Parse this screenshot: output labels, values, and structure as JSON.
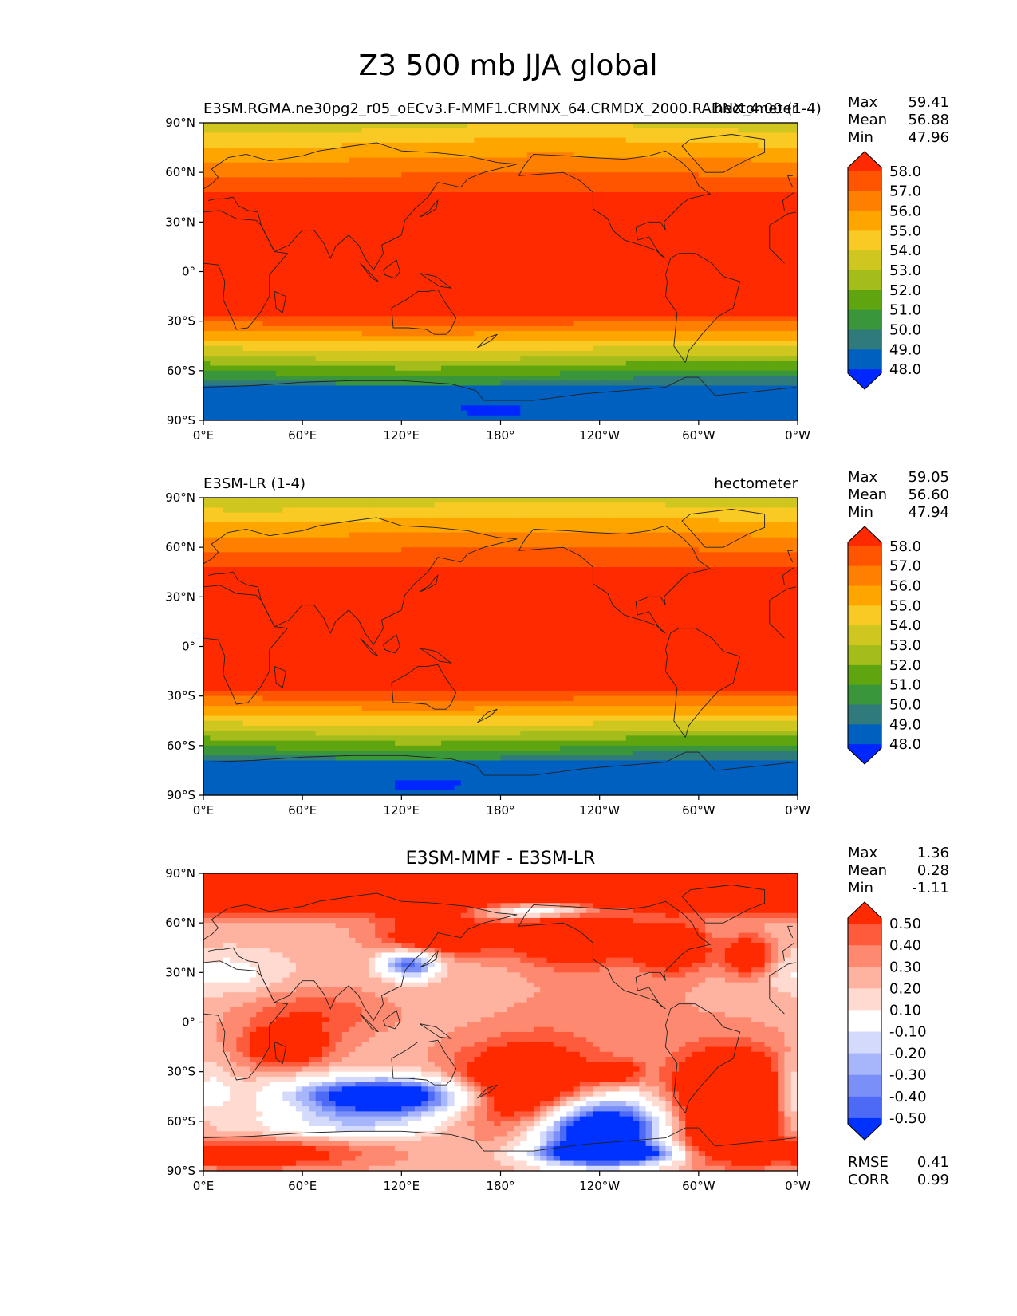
{
  "figure_title": "Z3 500 mb JJA global",
  "x_ticks": [
    "0°E",
    "60°E",
    "120°E",
    "180°",
    "120°W",
    "60°W",
    "0°W"
  ],
  "y_ticks": [
    "90°N",
    "60°N",
    "30°N",
    "0°",
    "30°S",
    "60°S",
    "90°S"
  ],
  "stat_labels": {
    "max": "Max",
    "mean": "Mean",
    "min": "Min",
    "rmse": "RMSE",
    "corr": "CORR"
  },
  "chart_data": [
    {
      "type": "heatmap",
      "id": "panel1",
      "title_left": "E3SM.RGMA.ne30pg2_r05_oECv3.F-MMF1.CRMNX_64.CRMDX_2000.RADNX_4.00 (1-4)",
      "title_right": "hectometer",
      "title_center": "",
      "xlim": [
        0,
        360
      ],
      "ylim": [
        -90,
        90
      ],
      "stats": {
        "max": "59.41",
        "mean": "56.88",
        "min": "47.96"
      },
      "colorbar": {
        "levels": [
          "58.0",
          "57.0",
          "56.0",
          "55.0",
          "54.0",
          "53.0",
          "52.0",
          "51.0",
          "50.0",
          "49.0",
          "48.0"
        ],
        "colors": [
          "#ff2a00",
          "#ff5500",
          "#ff8000",
          "#ffa500",
          "#f9c924",
          "#cfc71f",
          "#a4bd1a",
          "#5ea510",
          "#3a963a",
          "#2f7a7a",
          "#0060c0",
          "#0027ff"
        ]
      },
      "field": "abs",
      "bands": [
        {
          "min": 58.0,
          "color": "#ff2a00"
        },
        {
          "min": 57.0,
          "color": "#ff5500"
        },
        {
          "min": 56.0,
          "color": "#ff8000"
        },
        {
          "min": 55.0,
          "color": "#ffa500"
        },
        {
          "min": 54.0,
          "color": "#f9c924"
        },
        {
          "min": 53.0,
          "color": "#cfc71f"
        },
        {
          "min": 52.0,
          "color": "#a4bd1a"
        },
        {
          "min": 51.0,
          "color": "#5ea510"
        },
        {
          "min": 50.0,
          "color": "#3a963a"
        },
        {
          "min": 49.0,
          "color": "#2f7a7a"
        },
        {
          "min": 48.0,
          "color": "#0060c0"
        },
        {
          "min": -99,
          "color": "#0027ff"
        }
      ]
    },
    {
      "type": "heatmap",
      "id": "panel2",
      "title_left": "E3SM-LR (1-4)",
      "title_right": "hectometer",
      "title_center": "",
      "xlim": [
        0,
        360
      ],
      "ylim": [
        -90,
        90
      ],
      "stats": {
        "max": "59.05",
        "mean": "56.60",
        "min": "47.94"
      },
      "colorbar": {
        "levels": [
          "58.0",
          "57.0",
          "56.0",
          "55.0",
          "54.0",
          "53.0",
          "52.0",
          "51.0",
          "50.0",
          "49.0",
          "48.0"
        ],
        "colors": [
          "#ff2a00",
          "#ff5500",
          "#ff8000",
          "#ffa500",
          "#f9c924",
          "#cfc71f",
          "#a4bd1a",
          "#5ea510",
          "#3a963a",
          "#2f7a7a",
          "#0060c0",
          "#0027ff"
        ]
      },
      "field": "abs2",
      "bands": [
        {
          "min": 58.0,
          "color": "#ff2a00"
        },
        {
          "min": 57.0,
          "color": "#ff5500"
        },
        {
          "min": 56.0,
          "color": "#ff8000"
        },
        {
          "min": 55.0,
          "color": "#ffa500"
        },
        {
          "min": 54.0,
          "color": "#f9c924"
        },
        {
          "min": 53.0,
          "color": "#cfc71f"
        },
        {
          "min": 52.0,
          "color": "#a4bd1a"
        },
        {
          "min": 51.0,
          "color": "#5ea510"
        },
        {
          "min": 50.0,
          "color": "#3a963a"
        },
        {
          "min": 49.0,
          "color": "#2f7a7a"
        },
        {
          "min": 48.0,
          "color": "#0060c0"
        },
        {
          "min": -99,
          "color": "#0027ff"
        }
      ]
    },
    {
      "type": "heatmap",
      "id": "panel3",
      "title_left": "",
      "title_right": "",
      "title_center": "E3SM-MMF - E3SM-LR",
      "xlim": [
        0,
        360
      ],
      "ylim": [
        -90,
        90
      ],
      "stats": {
        "max": "1.36",
        "mean": "0.28",
        "min": "-1.11",
        "rmse": "0.41",
        "corr": "0.99"
      },
      "colorbar": {
        "levels": [
          "0.50",
          "0.40",
          "0.30",
          "0.20",
          "0.10",
          "-0.10",
          "-0.20",
          "-0.30",
          "-0.40",
          "-0.50"
        ],
        "colors": [
          "#ff2a00",
          "#fe5a3c",
          "#fd8a70",
          "#fdb3a0",
          "#fedad0",
          "#ffffff",
          "#d3dafc",
          "#a7b5fa",
          "#7a8ff8",
          "#4d6af7",
          "#0032ff"
        ]
      },
      "field": "diff",
      "bands": [
        {
          "min": 0.5,
          "color": "#ff2a00"
        },
        {
          "min": 0.4,
          "color": "#fe5a3c"
        },
        {
          "min": 0.3,
          "color": "#fd8a70"
        },
        {
          "min": 0.2,
          "color": "#fdb3a0"
        },
        {
          "min": 0.1,
          "color": "#fedad0"
        },
        {
          "min": -0.1,
          "color": "#ffffff"
        },
        {
          "min": -0.2,
          "color": "#d3dafc"
        },
        {
          "min": -0.3,
          "color": "#a7b5fa"
        },
        {
          "min": -0.4,
          "color": "#7a8ff8"
        },
        {
          "min": -0.5,
          "color": "#4d6af7"
        },
        {
          "min": -99,
          "color": "#0032ff"
        }
      ]
    }
  ]
}
